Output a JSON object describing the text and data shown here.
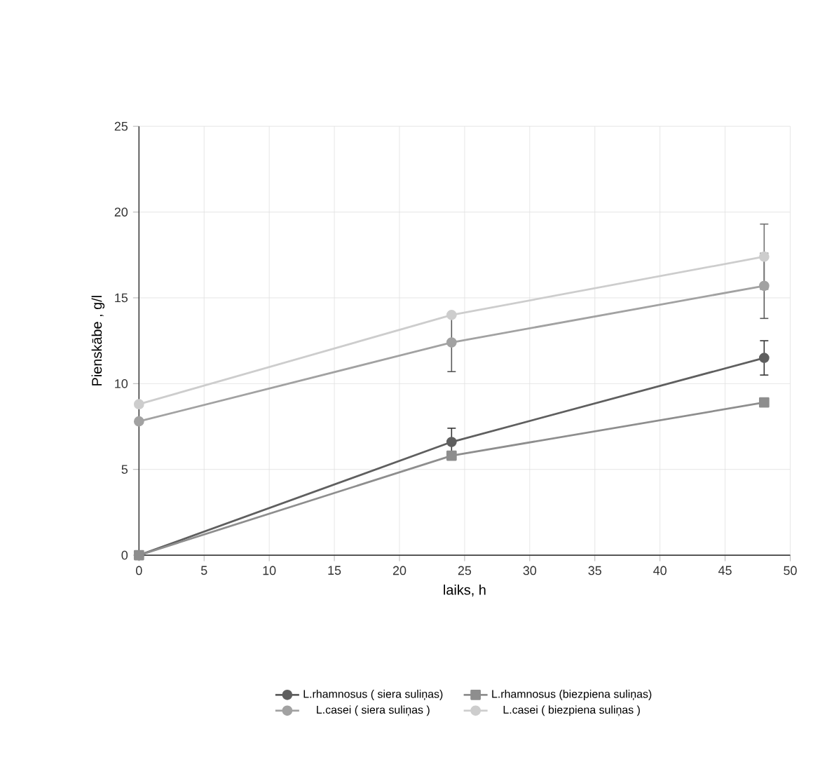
{
  "chart_data": {
    "type": "line",
    "xlabel": "laiks, h",
    "ylabel": "Pienskābe , g/l",
    "x": [
      0,
      24,
      48
    ],
    "xlim": [
      0,
      50
    ],
    "xticks": [
      0,
      5,
      10,
      15,
      20,
      25,
      30,
      35,
      40,
      45,
      50
    ],
    "ylim": [
      0,
      25
    ],
    "yticks": [
      0,
      5,
      10,
      15,
      20,
      25
    ],
    "grid": true,
    "legend": "bottom",
    "marker": "circle",
    "line_style": "solid",
    "series": [
      {
        "name": "L.rhamnosus ( siera suliņas)",
        "color": "#5f5f5f",
        "values": [
          0,
          6.6,
          11.5
        ],
        "errors": [
          null,
          0.8,
          1.0
        ]
      },
      {
        "name": "L.rhamnosus (biezpiena suliņas)",
        "color": "#8e8e8e",
        "marker": "square",
        "values": [
          0,
          5.8,
          8.9
        ],
        "errors": [
          null,
          null,
          null
        ]
      },
      {
        "name": "L.casei ( siera suliņas )",
        "color": "#a2a2a2",
        "values": [
          7.8,
          12.4,
          15.7
        ],
        "errors": [
          null,
          1.7,
          1.9
        ]
      },
      {
        "name": "L.casei ( biezpiena suliņas )",
        "color": "#cdcdcd",
        "values": [
          8.8,
          14.0,
          17.4
        ],
        "errors": [
          null,
          null,
          1.9
        ]
      }
    ]
  }
}
